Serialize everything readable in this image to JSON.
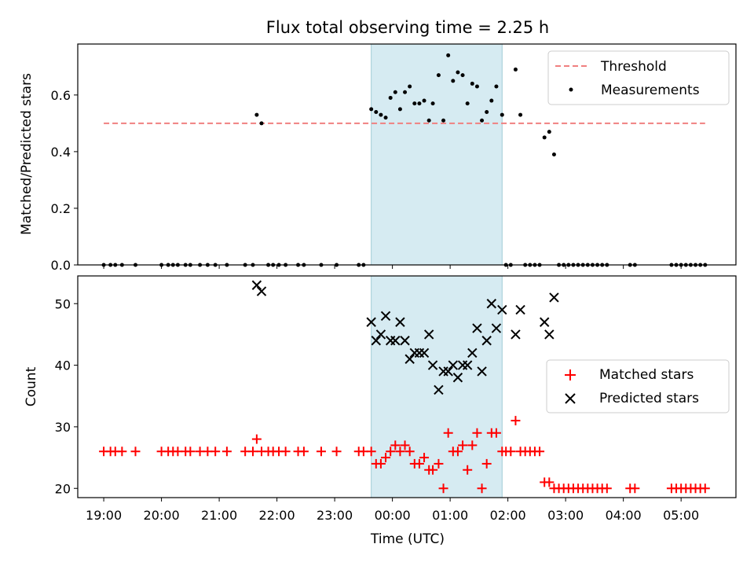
{
  "figure": {
    "title": "Flux total observing time = 2.25 h",
    "xlabel": "Time (UTC)"
  },
  "chart_data": [
    {
      "type": "scatter",
      "panel": "top",
      "title": "Flux total observing time = 2.25 h",
      "ylabel": "Matched/Predicted stars",
      "xlabel": "",
      "xlim": [
        "18:33",
        "05:57"
      ],
      "ylim": [
        0,
        0.78
      ],
      "yticks": [
        0.0,
        0.2,
        0.4,
        0.6
      ],
      "ytick_labels": [
        "0.0",
        "0.2",
        "0.4",
        "0.6"
      ],
      "shaded_interval": [
        "23:38",
        "01:54"
      ],
      "shade_color": "#add8e6",
      "legend": "top-right",
      "threshold": {
        "name": "Threshold",
        "value": 0.5,
        "x_range": [
          "19:00",
          "05:25"
        ],
        "color": "#f08080",
        "style": "dashed"
      },
      "series": [
        {
          "name": "Measurements",
          "color": "#000000",
          "marker": "dot",
          "points": [
            [
              "19:00",
              0
            ],
            [
              "19:07",
              0
            ],
            [
              "19:12",
              0
            ],
            [
              "19:19",
              0
            ],
            [
              "19:33",
              0
            ],
            [
              "20:00",
              0
            ],
            [
              "20:07",
              0
            ],
            [
              "20:12",
              0
            ],
            [
              "20:17",
              0
            ],
            [
              "20:25",
              0
            ],
            [
              "20:30",
              0
            ],
            [
              "20:40",
              0
            ],
            [
              "20:48",
              0
            ],
            [
              "20:56",
              0
            ],
            [
              "21:08",
              0
            ],
            [
              "21:27",
              0
            ],
            [
              "21:35",
              0
            ],
            [
              "21:39",
              0.53
            ],
            [
              "21:44",
              0.5
            ],
            [
              "21:51",
              0
            ],
            [
              "21:56",
              0
            ],
            [
              "22:02",
              0
            ],
            [
              "22:09",
              0
            ],
            [
              "22:22",
              0
            ],
            [
              "22:28",
              0
            ],
            [
              "22:46",
              0
            ],
            [
              "23:02",
              0
            ],
            [
              "23:25",
              0
            ],
            [
              "23:30",
              0
            ],
            [
              "23:38",
              0.55
            ],
            [
              "23:43",
              0.54
            ],
            [
              "23:48",
              0.53
            ],
            [
              "23:53",
              0.52
            ],
            [
              "23:58",
              0.59
            ],
            [
              "00:03",
              0.61
            ],
            [
              "00:08",
              0.55
            ],
            [
              "00:13",
              0.61
            ],
            [
              "00:18",
              0.63
            ],
            [
              "00:23",
              0.57
            ],
            [
              "00:28",
              0.57
            ],
            [
              "00:33",
              0.58
            ],
            [
              "00:38",
              0.51
            ],
            [
              "00:42",
              0.57
            ],
            [
              "00:48",
              0.67
            ],
            [
              "00:53",
              0.51
            ],
            [
              "00:58",
              0.74
            ],
            [
              "01:03",
              0.65
            ],
            [
              "01:08",
              0.68
            ],
            [
              "01:13",
              0.67
            ],
            [
              "01:18",
              0.57
            ],
            [
              "01:23",
              0.64
            ],
            [
              "01:28",
              0.63
            ],
            [
              "01:33",
              0.51
            ],
            [
              "01:38",
              0.54
            ],
            [
              "01:43",
              0.58
            ],
            [
              "01:48",
              0.63
            ],
            [
              "01:54",
              0.53
            ],
            [
              "01:58",
              0
            ],
            [
              "02:03",
              0
            ],
            [
              "02:08",
              0.69
            ],
            [
              "02:13",
              0.53
            ],
            [
              "02:18",
              0
            ],
            [
              "02:23",
              0
            ],
            [
              "02:28",
              0
            ],
            [
              "02:33",
              0
            ],
            [
              "02:38",
              0.45
            ],
            [
              "02:43",
              0.47
            ],
            [
              "02:48",
              0.39
            ],
            [
              "02:53",
              0
            ],
            [
              "02:58",
              0
            ],
            [
              "03:03",
              0
            ],
            [
              "03:08",
              0
            ],
            [
              "03:13",
              0
            ],
            [
              "03:18",
              0
            ],
            [
              "03:23",
              0
            ],
            [
              "03:28",
              0
            ],
            [
              "03:33",
              0
            ],
            [
              "03:38",
              0
            ],
            [
              "03:43",
              0
            ],
            [
              "04:07",
              0
            ],
            [
              "04:12",
              0
            ],
            [
              "04:50",
              0
            ],
            [
              "04:55",
              0
            ],
            [
              "05:00",
              0
            ],
            [
              "05:05",
              0
            ],
            [
              "05:10",
              0
            ],
            [
              "05:15",
              0
            ],
            [
              "05:20",
              0
            ],
            [
              "05:25",
              0
            ]
          ]
        }
      ]
    },
    {
      "type": "scatter",
      "panel": "bottom",
      "ylabel": "Count",
      "xlabel": "Time (UTC)",
      "xlim": [
        "18:33",
        "05:57"
      ],
      "ylim": [
        18.5,
        54.5
      ],
      "yticks": [
        20,
        30,
        40,
        50
      ],
      "ytick_labels": [
        "20",
        "30",
        "40",
        "50"
      ],
      "xticks": [
        "19:00",
        "20:00",
        "21:00",
        "22:00",
        "23:00",
        "00:00",
        "01:00",
        "02:00",
        "03:00",
        "04:00",
        "05:00"
      ],
      "xtick_labels": [
        "19:00",
        "20:00",
        "21:00",
        "22:00",
        "23:00",
        "00:00",
        "01:00",
        "02:00",
        "03:00",
        "04:00",
        "05:00"
      ],
      "shaded_interval": [
        "23:38",
        "01:54"
      ],
      "shade_color": "#add8e6",
      "legend": "center-right",
      "series": [
        {
          "name": "Matched stars",
          "color": "#ff0000",
          "marker": "plus",
          "points": [
            [
              "19:00",
              26
            ],
            [
              "19:07",
              26
            ],
            [
              "19:12",
              26
            ],
            [
              "19:19",
              26
            ],
            [
              "19:33",
              26
            ],
            [
              "20:00",
              26
            ],
            [
              "20:07",
              26
            ],
            [
              "20:12",
              26
            ],
            [
              "20:17",
              26
            ],
            [
              "20:25",
              26
            ],
            [
              "20:30",
              26
            ],
            [
              "20:40",
              26
            ],
            [
              "20:48",
              26
            ],
            [
              "20:56",
              26
            ],
            [
              "21:08",
              26
            ],
            [
              "21:27",
              26
            ],
            [
              "21:35",
              26
            ],
            [
              "21:39",
              28
            ],
            [
              "21:44",
              26
            ],
            [
              "21:51",
              26
            ],
            [
              "21:56",
              26
            ],
            [
              "22:02",
              26
            ],
            [
              "22:09",
              26
            ],
            [
              "22:22",
              26
            ],
            [
              "22:28",
              26
            ],
            [
              "22:46",
              26
            ],
            [
              "23:02",
              26
            ],
            [
              "23:25",
              26
            ],
            [
              "23:30",
              26
            ],
            [
              "23:38",
              26
            ],
            [
              "23:43",
              24
            ],
            [
              "23:48",
              24
            ],
            [
              "23:53",
              25
            ],
            [
              "23:58",
              26
            ],
            [
              "00:03",
              27
            ],
            [
              "00:08",
              26
            ],
            [
              "00:13",
              27
            ],
            [
              "00:18",
              26
            ],
            [
              "00:23",
              24
            ],
            [
              "00:28",
              24
            ],
            [
              "00:33",
              25
            ],
            [
              "00:38",
              23
            ],
            [
              "00:42",
              23
            ],
            [
              "00:48",
              24
            ],
            [
              "00:53",
              20
            ],
            [
              "00:58",
              29
            ],
            [
              "01:03",
              26
            ],
            [
              "01:08",
              26
            ],
            [
              "01:13",
              27
            ],
            [
              "01:18",
              23
            ],
            [
              "01:23",
              27
            ],
            [
              "01:28",
              29
            ],
            [
              "01:33",
              20
            ],
            [
              "01:38",
              24
            ],
            [
              "01:43",
              29
            ],
            [
              "01:48",
              29
            ],
            [
              "01:54",
              26
            ],
            [
              "01:58",
              26
            ],
            [
              "02:03",
              26
            ],
            [
              "02:08",
              31
            ],
            [
              "02:13",
              26
            ],
            [
              "02:18",
              26
            ],
            [
              "02:23",
              26
            ],
            [
              "02:28",
              26
            ],
            [
              "02:33",
              26
            ],
            [
              "02:38",
              21
            ],
            [
              "02:43",
              21
            ],
            [
              "02:48",
              20
            ],
            [
              "02:53",
              20
            ],
            [
              "02:58",
              20
            ],
            [
              "03:03",
              20
            ],
            [
              "03:08",
              20
            ],
            [
              "03:13",
              20
            ],
            [
              "03:18",
              20
            ],
            [
              "03:23",
              20
            ],
            [
              "03:28",
              20
            ],
            [
              "03:33",
              20
            ],
            [
              "03:38",
              20
            ],
            [
              "03:43",
              20
            ],
            [
              "04:07",
              20
            ],
            [
              "04:12",
              20
            ],
            [
              "04:50",
              20
            ],
            [
              "04:55",
              20
            ],
            [
              "05:00",
              20
            ],
            [
              "05:05",
              20
            ],
            [
              "05:10",
              20
            ],
            [
              "05:15",
              20
            ],
            [
              "05:20",
              20
            ],
            [
              "05:25",
              20
            ]
          ]
        },
        {
          "name": "Predicted stars",
          "color": "#000000",
          "marker": "x",
          "points": [
            [
              "21:39",
              53
            ],
            [
              "21:44",
              52
            ],
            [
              "23:38",
              47
            ],
            [
              "23:43",
              44
            ],
            [
              "23:48",
              45
            ],
            [
              "23:53",
              48
            ],
            [
              "23:58",
              44
            ],
            [
              "00:03",
              44
            ],
            [
              "00:08",
              47
            ],
            [
              "00:13",
              44
            ],
            [
              "00:18",
              41
            ],
            [
              "00:23",
              42
            ],
            [
              "00:28",
              42
            ],
            [
              "00:33",
              42
            ],
            [
              "00:38",
              45
            ],
            [
              "00:42",
              40
            ],
            [
              "00:48",
              36
            ],
            [
              "00:53",
              39
            ],
            [
              "00:58",
              39
            ],
            [
              "01:03",
              40
            ],
            [
              "01:08",
              38
            ],
            [
              "01:13",
              40
            ],
            [
              "01:18",
              40
            ],
            [
              "01:23",
              42
            ],
            [
              "01:28",
              46
            ],
            [
              "01:33",
              39
            ],
            [
              "01:38",
              44
            ],
            [
              "01:43",
              50
            ],
            [
              "01:48",
              46
            ],
            [
              "01:54",
              49
            ],
            [
              "02:08",
              45
            ],
            [
              "02:13",
              49
            ],
            [
              "02:38",
              47
            ],
            [
              "02:43",
              45
            ],
            [
              "02:48",
              51
            ]
          ]
        }
      ]
    }
  ]
}
